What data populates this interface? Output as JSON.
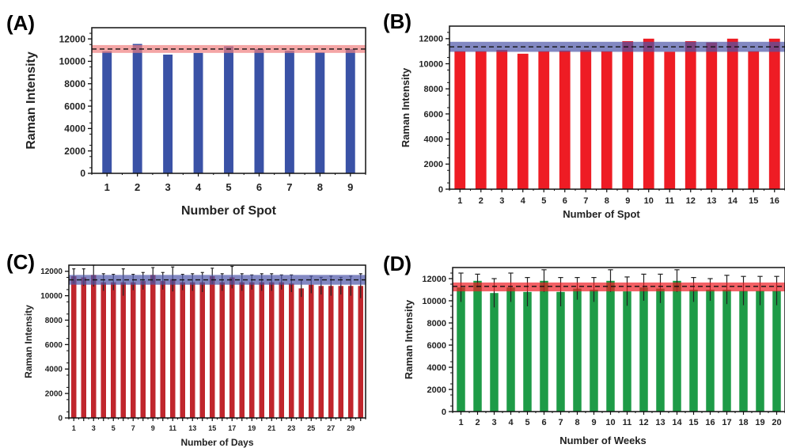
{
  "chart_data": [
    {
      "panel": "(A)",
      "type": "bar",
      "xlabel": "Number of Spot",
      "ylabel": "Raman Intensity",
      "ylim": [
        0,
        13000
      ],
      "yticks": [
        0,
        2000,
        4000,
        6000,
        8000,
        10000,
        12000
      ],
      "categories": [
        "1",
        "2",
        "3",
        "4",
        "5",
        "6",
        "7",
        "8",
        "9"
      ],
      "values": [
        10900,
        11550,
        10600,
        10750,
        11350,
        11100,
        10950,
        10800,
        11100
      ],
      "bar_color": "#3a52a6",
      "band": {
        "low": 10750,
        "high": 11450,
        "mean": 11100,
        "color": "#f08080"
      },
      "error_bars": false
    },
    {
      "panel": "(B)",
      "type": "bar",
      "xlabel": "Number of Spot",
      "ylabel": "Raman Intensity",
      "ylim": [
        0,
        13000
      ],
      "yticks": [
        0,
        2000,
        4000,
        6000,
        8000,
        10000,
        12000
      ],
      "categories": [
        "1",
        "2",
        "3",
        "4",
        "5",
        "6",
        "7",
        "8",
        "9",
        "10",
        "11",
        "12",
        "13",
        "14",
        "15",
        "16"
      ],
      "values": [
        11000,
        11000,
        11100,
        10800,
        11000,
        11050,
        11100,
        11000,
        11800,
        12000,
        10950,
        11800,
        11700,
        12000,
        11000,
        12000
      ],
      "bar_color": "#ee1c24",
      "band": {
        "low": 10950,
        "high": 11750,
        "mean": 11350,
        "color": "#4d55a8"
      },
      "error_bars": false
    },
    {
      "panel": "(C)",
      "type": "bar",
      "xlabel": "Number of Days",
      "ylabel": "Raman Intensity",
      "ylim": [
        0,
        12500
      ],
      "yticks": [
        0,
        2000,
        4000,
        6000,
        8000,
        10000,
        12000
      ],
      "categories": [
        "1",
        "2",
        "3",
        "4",
        "5",
        "6",
        "7",
        "8",
        "9",
        "10",
        "11",
        "12",
        "13",
        "14",
        "15",
        "16",
        "17",
        "18",
        "19",
        "20",
        "21",
        "22",
        "23",
        "24",
        "25",
        "26",
        "27",
        "28",
        "29",
        "30"
      ],
      "tick_labels": [
        "1",
        "",
        "3",
        "",
        "5",
        "",
        "7",
        "",
        "9",
        "",
        "11",
        "",
        "13",
        "",
        "15",
        "",
        "17",
        "",
        "19",
        "",
        "21",
        "",
        "23",
        "",
        "25",
        "",
        "27",
        "",
        "29",
        ""
      ],
      "values": [
        11600,
        11500,
        11700,
        11100,
        11100,
        11100,
        11100,
        11200,
        11700,
        11200,
        11350,
        11100,
        11100,
        11100,
        11600,
        11100,
        11500,
        11100,
        11100,
        11100,
        11100,
        11100,
        11000,
        10600,
        10900,
        10800,
        10800,
        10800,
        10800,
        10800
      ],
      "errors": [
        600,
        700,
        950,
        700,
        650,
        1100,
        650,
        700,
        600,
        700,
        1000,
        650,
        700,
        800,
        650,
        700,
        900,
        700,
        600,
        700,
        700,
        600,
        700,
        700,
        700,
        700,
        800,
        700,
        800,
        1000
      ],
      "bar_color": "#c0262d",
      "band": {
        "low": 10900,
        "high": 11700,
        "mean": 11300,
        "color": "#4d55a8"
      },
      "error_bars": true
    },
    {
      "panel": "(D)",
      "type": "bar",
      "xlabel": "Number of Weeks",
      "ylabel": "Raman Intensity",
      "ylim": [
        0,
        13000
      ],
      "yticks": [
        0,
        2000,
        4000,
        6000,
        8000,
        10000,
        12000
      ],
      "categories": [
        "1",
        "2",
        "3",
        "4",
        "5",
        "6",
        "7",
        "8",
        "9",
        "10",
        "11",
        "12",
        "13",
        "14",
        "15",
        "16",
        "17",
        "18",
        "19",
        "20"
      ],
      "values": [
        11200,
        11800,
        10700,
        11200,
        10800,
        11800,
        10800,
        11100,
        11000,
        11800,
        10850,
        11200,
        11100,
        11800,
        11000,
        11000,
        11000,
        10900,
        10900,
        10900
      ],
      "errors": [
        1300,
        600,
        1300,
        1300,
        1300,
        1000,
        1300,
        1000,
        1100,
        1000,
        1300,
        1200,
        1300,
        1000,
        1100,
        1000,
        1300,
        1300,
        1300,
        1300
      ],
      "bar_color": "#1e9b47",
      "band": {
        "low": 10850,
        "high": 11650,
        "mean": 11300,
        "color": "#ee1c24"
      },
      "error_bars": true
    }
  ]
}
